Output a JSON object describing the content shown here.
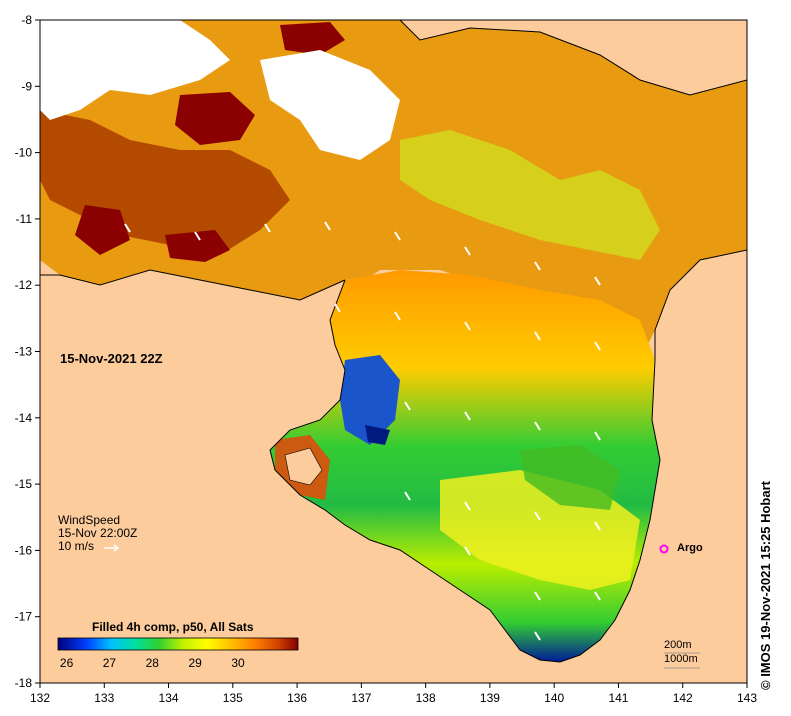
{
  "map": {
    "lon_range": [
      132,
      143
    ],
    "lat_range": [
      -18,
      -8
    ],
    "x_ticks": [
      "132",
      "133",
      "134",
      "135",
      "136",
      "137",
      "138",
      "139",
      "140",
      "141",
      "142",
      "143"
    ],
    "y_ticks": [
      "-8",
      "-9",
      "-10",
      "-11",
      "-12",
      "-13",
      "-14",
      "-15",
      "-16",
      "-17",
      "-18"
    ],
    "land_color": "#fccc9c",
    "sea_colors": [
      "#00007a",
      "#0033cc",
      "#0099ff",
      "#00ccaa",
      "#22cc22",
      "#99ee00",
      "#ffff00",
      "#ffcc00",
      "#ff8c00",
      "#cc4400",
      "#8b0000"
    ]
  },
  "annotations": {
    "time_label": "15-Nov-2021 22Z",
    "wind_title": "WindSpeed",
    "wind_time": "15-Nov 22:00Z",
    "wind_scale": "10 m/s",
    "argo_label": "Argo",
    "credit": "© IMOS 19-Nov-2021 15:25 Hobart"
  },
  "colorbar": {
    "title": "Filled 4h comp, p50, All Sats",
    "ticks": [
      "26",
      "27",
      "28",
      "29",
      "30"
    ],
    "range": [
      25.8,
      31.4
    ],
    "colors": [
      "#000080",
      "#0040ff",
      "#00c0ff",
      "#00e0a0",
      "#30d030",
      "#c0f000",
      "#ffff00",
      "#ffc000",
      "#ff8000",
      "#d04000",
      "#800000"
    ]
  },
  "scale": {
    "contour1": "200m",
    "contour2": "1000m"
  }
}
